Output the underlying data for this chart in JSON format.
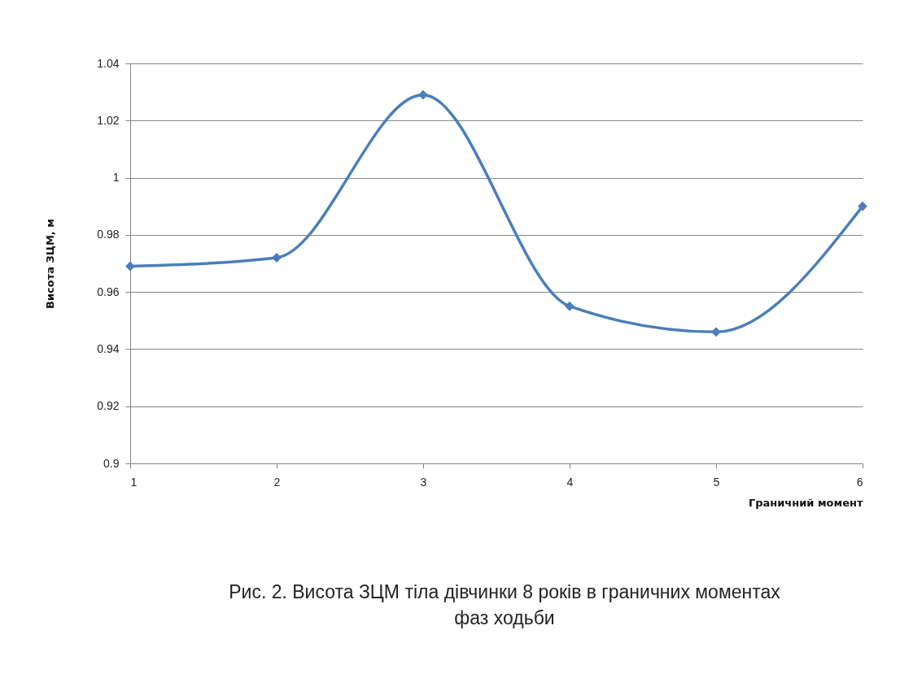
{
  "chart_data": {
    "type": "line",
    "xlabel": "Граничний момент",
    "ylabel": "Висота ЗЦМ, м",
    "x": [
      1,
      2,
      3,
      4,
      5,
      6
    ],
    "series": [
      {
        "color": "#4a7ebb",
        "values": [
          0.969,
          0.972,
          1.029,
          0.955,
          0.946,
          0.99
        ]
      }
    ],
    "xlim": [
      1,
      6
    ],
    "xticks": [
      1,
      2,
      3,
      4,
      5,
      6
    ],
    "ylim": [
      0.9,
      1.04
    ],
    "yticks": [
      0.9,
      0.92,
      0.94,
      0.96,
      0.98,
      1,
      1.02,
      1.04
    ],
    "grid": "y",
    "marker": "diamond",
    "line_style": "solid",
    "annotations": [
      "Рис. 2. Висота ЗЦМ тіла дівчинки 8 років в граничних моментах фаз ходьби"
    ]
  }
}
